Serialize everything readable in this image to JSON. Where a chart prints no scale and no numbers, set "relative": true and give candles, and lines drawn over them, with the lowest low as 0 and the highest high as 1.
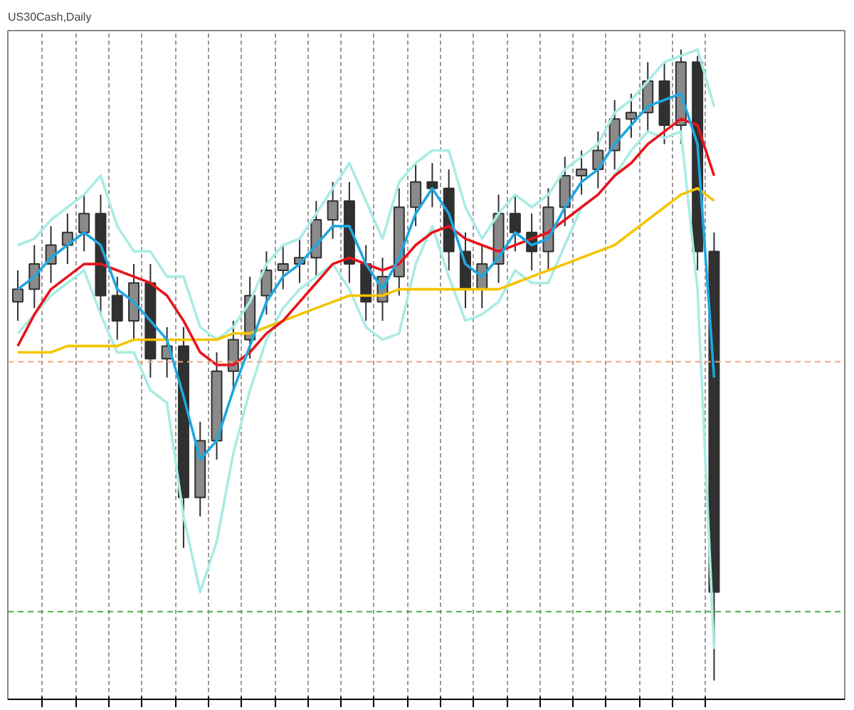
{
  "chart_data": {
    "type": "candlestick",
    "title": "US30Cash,Daily",
    "relative": true,
    "grid": "x",
    "tick_labels": false,
    "categories": [
      null,
      null,
      null,
      null,
      null,
      null,
      null,
      null,
      null,
      null,
      null,
      null,
      null,
      null,
      null,
      null,
      null,
      null,
      null,
      null,
      null,
      null,
      null,
      null,
      null,
      null,
      null,
      null,
      null,
      null,
      null,
      null,
      null,
      null,
      null,
      null,
      null,
      null,
      null,
      null,
      null,
      null,
      null
    ],
    "color": "#303030",
    "ohlc": [
      [
        0.6,
        0.65,
        0.57,
        0.62
      ],
      [
        0.62,
        0.69,
        0.59,
        0.66
      ],
      [
        0.66,
        0.72,
        0.63,
        0.69
      ],
      [
        0.69,
        0.74,
        0.66,
        0.71
      ],
      [
        0.71,
        0.77,
        0.68,
        0.74
      ],
      [
        0.74,
        0.77,
        0.58,
        0.61
      ],
      [
        0.61,
        0.64,
        0.54,
        0.57
      ],
      [
        0.57,
        0.66,
        0.54,
        0.63
      ],
      [
        0.63,
        0.66,
        0.48,
        0.51
      ],
      [
        0.51,
        0.56,
        0.48,
        0.53
      ],
      [
        0.53,
        0.56,
        0.21,
        0.29
      ],
      [
        0.29,
        0.41,
        0.26,
        0.38
      ],
      [
        0.38,
        0.52,
        0.35,
        0.49
      ],
      [
        0.49,
        0.57,
        0.46,
        0.54
      ],
      [
        0.54,
        0.64,
        0.51,
        0.61
      ],
      [
        0.61,
        0.68,
        0.58,
        0.65
      ],
      [
        0.65,
        0.69,
        0.62,
        0.66
      ],
      [
        0.66,
        0.7,
        0.63,
        0.67
      ],
      [
        0.67,
        0.76,
        0.64,
        0.73
      ],
      [
        0.73,
        0.79,
        0.7,
        0.76
      ],
      [
        0.76,
        0.79,
        0.63,
        0.66
      ],
      [
        0.66,
        0.69,
        0.57,
        0.6
      ],
      [
        0.6,
        0.67,
        0.57,
        0.64
      ],
      [
        0.64,
        0.78,
        0.61,
        0.75
      ],
      [
        0.75,
        0.82,
        0.72,
        0.79
      ],
      [
        0.79,
        0.82,
        0.75,
        0.78
      ],
      [
        0.78,
        0.81,
        0.65,
        0.68
      ],
      [
        0.68,
        0.71,
        0.59,
        0.62
      ],
      [
        0.62,
        0.69,
        0.59,
        0.66
      ],
      [
        0.66,
        0.77,
        0.63,
        0.74
      ],
      [
        0.74,
        0.77,
        0.68,
        0.71
      ],
      [
        0.71,
        0.74,
        0.65,
        0.68
      ],
      [
        0.68,
        0.78,
        0.65,
        0.75
      ],
      [
        0.75,
        0.83,
        0.72,
        0.8
      ],
      [
        0.8,
        0.84,
        0.77,
        0.81
      ],
      [
        0.81,
        0.87,
        0.78,
        0.84
      ],
      [
        0.84,
        0.92,
        0.81,
        0.89
      ],
      [
        0.89,
        0.93,
        0.86,
        0.9
      ],
      [
        0.9,
        0.98,
        0.87,
        0.95
      ],
      [
        0.95,
        0.98,
        0.85,
        0.88
      ],
      [
        0.88,
        1.0,
        0.85,
        0.98
      ],
      [
        0.98,
        0.99,
        0.65,
        0.68
      ],
      [
        0.68,
        0.71,
        0.0,
        0.14
      ]
    ],
    "series": [
      {
        "type": "line",
        "color": "#a8ece4",
        "values": [
          0.55,
          0.58,
          0.61,
          0.63,
          0.65,
          0.58,
          0.52,
          0.52,
          0.46,
          0.44,
          0.26,
          0.14,
          0.22,
          0.36,
          0.46,
          0.54,
          0.59,
          0.62,
          0.64,
          0.66,
          0.62,
          0.56,
          0.54,
          0.55,
          0.66,
          0.72,
          0.64,
          0.57,
          0.58,
          0.6,
          0.65,
          0.63,
          0.63,
          0.69,
          0.75,
          0.77,
          0.8,
          0.84,
          0.87,
          0.86,
          0.87,
          0.62,
          0.05
        ]
      },
      {
        "type": "line",
        "color": "#a8ece4",
        "values": [
          0.69,
          0.7,
          0.73,
          0.75,
          0.77,
          0.8,
          0.72,
          0.68,
          0.68,
          0.64,
          0.64,
          0.56,
          0.54,
          0.56,
          0.6,
          0.66,
          0.69,
          0.7,
          0.74,
          0.78,
          0.82,
          0.76,
          0.7,
          0.79,
          0.82,
          0.84,
          0.84,
          0.75,
          0.7,
          0.74,
          0.77,
          0.75,
          0.77,
          0.81,
          0.83,
          0.85,
          0.9,
          0.92,
          0.95,
          0.98,
          0.99,
          1.0,
          0.91
        ]
      },
      {
        "type": "line",
        "color": "#f5c400",
        "values": [
          0.52,
          0.52,
          0.52,
          0.53,
          0.53,
          0.53,
          0.53,
          0.54,
          0.54,
          0.54,
          0.54,
          0.54,
          0.54,
          0.55,
          0.55,
          0.56,
          0.57,
          0.58,
          0.59,
          0.6,
          0.61,
          0.61,
          0.61,
          0.62,
          0.62,
          0.62,
          0.62,
          0.62,
          0.62,
          0.62,
          0.63,
          0.64,
          0.65,
          0.66,
          0.67,
          0.68,
          0.69,
          0.71,
          0.73,
          0.75,
          0.77,
          0.78,
          0.76
        ]
      },
      {
        "type": "line",
        "color": "#e8141c",
        "values": [
          0.53,
          0.58,
          0.62,
          0.64,
          0.66,
          0.66,
          0.65,
          0.64,
          0.63,
          0.61,
          0.57,
          0.52,
          0.5,
          0.5,
          0.52,
          0.55,
          0.57,
          0.6,
          0.63,
          0.66,
          0.67,
          0.66,
          0.65,
          0.66,
          0.69,
          0.71,
          0.72,
          0.7,
          0.69,
          0.68,
          0.69,
          0.7,
          0.71,
          0.73,
          0.75,
          0.77,
          0.8,
          0.82,
          0.85,
          0.87,
          0.89,
          0.88,
          0.8
        ]
      },
      {
        "type": "line",
        "color": "#1ea7e1",
        "values": [
          0.62,
          0.64,
          0.67,
          0.69,
          0.71,
          0.69,
          0.62,
          0.6,
          0.57,
          0.54,
          0.45,
          0.35,
          0.38,
          0.46,
          0.53,
          0.6,
          0.64,
          0.66,
          0.69,
          0.72,
          0.72,
          0.66,
          0.62,
          0.67,
          0.74,
          0.78,
          0.74,
          0.66,
          0.64,
          0.67,
          0.71,
          0.69,
          0.7,
          0.75,
          0.79,
          0.81,
          0.85,
          0.88,
          0.91,
          0.92,
          0.93,
          0.85,
          0.48
        ]
      }
    ],
    "ref_lines": [
      {
        "axis": "y",
        "value": 0.505,
        "color": "#f4a582",
        "line_style": "dashed"
      },
      {
        "axis": "y",
        "value": 0.109,
        "color": "#4daf4a",
        "line_style": "dashed"
      }
    ]
  }
}
